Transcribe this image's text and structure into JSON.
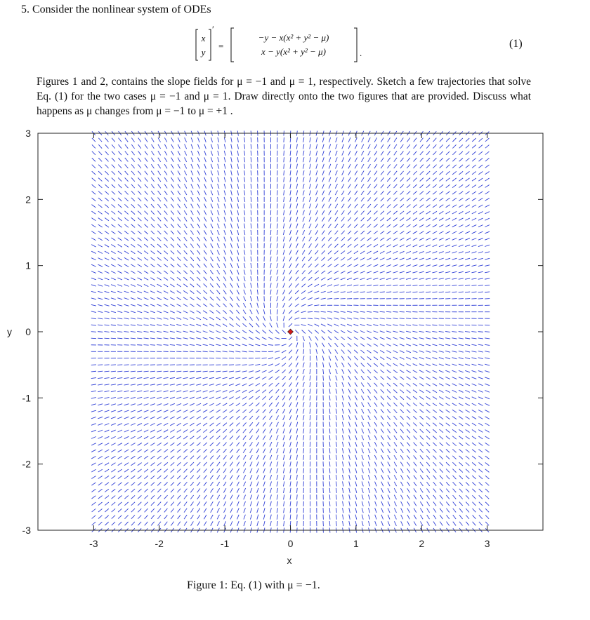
{
  "problem": {
    "heading": "5. Consider the nonlinear system of ODEs",
    "equation": {
      "lhs_top": "x",
      "lhs_bottom": "y",
      "prime": "′",
      "equals": "=",
      "rhs_top": "−y − x(x² + y² − μ)",
      "rhs_bottom": "x − y(x² + y² − μ)",
      "end_punct": ".",
      "number": "(1)"
    },
    "text": "Figures 1 and 2, contains the slope fields for μ = −1 and μ = 1, respectively. Sketch a few trajectories that solve Eq. (1) for the two cases μ = −1 and μ = 1. Draw directly onto the two figures that are provided. Discuss what happens as μ changes from μ = −1 to μ = +1 ."
  },
  "figure": {
    "caption": "Figure 1: Eq. (1) with μ = −1.",
    "mu": -1
  },
  "chart_data": {
    "type": "slope-field",
    "title": "",
    "xlabel": "x",
    "ylabel": "y",
    "xlim": [
      -3.85,
      3.85
    ],
    "ylim": [
      -3,
      3
    ],
    "field_range": [
      -3,
      3
    ],
    "x_ticks": [
      "-3",
      "-2",
      "-1",
      "0",
      "1",
      "2",
      "3"
    ],
    "y_ticks": [
      "3",
      "2",
      "1",
      "0",
      "-1",
      "-2",
      "-3"
    ],
    "x_tick_values": [
      -3,
      -2,
      -1,
      0,
      1,
      2,
      3
    ],
    "y_tick_values": [
      3,
      2,
      1,
      0,
      -1,
      -2,
      -3
    ],
    "grid_points_per_axis": 61,
    "critical_point": {
      "x": 0,
      "y": 0
    },
    "colors": {
      "field": "#2f3fd6",
      "critical_point": "#d11a1a",
      "axes": "#222222"
    }
  }
}
